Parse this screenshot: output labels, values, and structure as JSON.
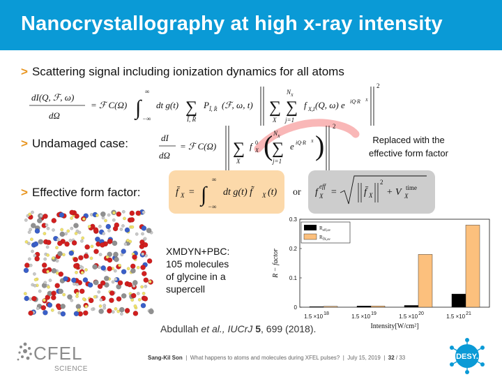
{
  "header": {
    "title": "Nanocrystallography at high x-ray intensity",
    "bg_color": "#0a9ad6",
    "accent_color": "#e8951f"
  },
  "bullets": {
    "mark": ">",
    "scattering": "Scattering signal including ionization dynamics for all atoms",
    "undamaged": "Undamaged case:",
    "effective": "Effective form factor:"
  },
  "equation_glyphs": {
    "or": "or"
  },
  "annotation": {
    "replaced_line1": "Replaced with the",
    "replaced_line2": "effective form factor"
  },
  "figure": {
    "caption_lines": [
      "XMDYN+PBC:",
      "105 molecules",
      "of glycine in a",
      "supercell"
    ]
  },
  "citation": {
    "authors": "Abdullah",
    "etal": " et al., ",
    "journal": "IUCrJ",
    "volume": "5",
    "rest": ", 699 (2018)."
  },
  "footer": {
    "presenter": "Sang-Kil Son",
    "talk": "What happens to atoms and molecules during XFEL pulses?",
    "date": "July 15, 2019",
    "page": "32",
    "total": "33"
  },
  "logos": {
    "cfel_text": "CFEL",
    "cfel_sub": "SCIENCE",
    "desy_text": "DESY."
  },
  "chart_data": {
    "type": "bar",
    "categories": [
      "1.5 ×10^18",
      "1.5 ×10^19",
      "1.5 ×10^20",
      "1.5 ×10^21"
    ],
    "category_labels": [
      {
        "base": "1.5 ×10",
        "exp": "18"
      },
      {
        "base": "1.5 ×10",
        "exp": "19"
      },
      {
        "base": "1.5 ×10",
        "exp": "20"
      },
      {
        "base": "1.5 ×10",
        "exp": "21"
      }
    ],
    "series": [
      {
        "name": "R_{eff,av}",
        "label_main": "R",
        "label_sub": "eff,av",
        "color": "#000000",
        "values": [
          0.002,
          0.004,
          0.006,
          0.045
        ]
      },
      {
        "name": "R_{f_X,av}",
        "label_main": "R",
        "label_sub": "f̄X,av",
        "color": "#fcc07d",
        "values": [
          0.003,
          0.004,
          0.18,
          0.28
        ]
      }
    ],
    "xlabel": "Intensity[W/cm²]",
    "ylabel": "R − factor",
    "ylim": [
      0,
      0.3
    ],
    "yticks": [
      "0",
      "0.1",
      "0.2",
      "0.3"
    ],
    "ytick_values": [
      0,
      0.1,
      0.2,
      0.3
    ],
    "legend_position": "top-left",
    "grid": false
  }
}
